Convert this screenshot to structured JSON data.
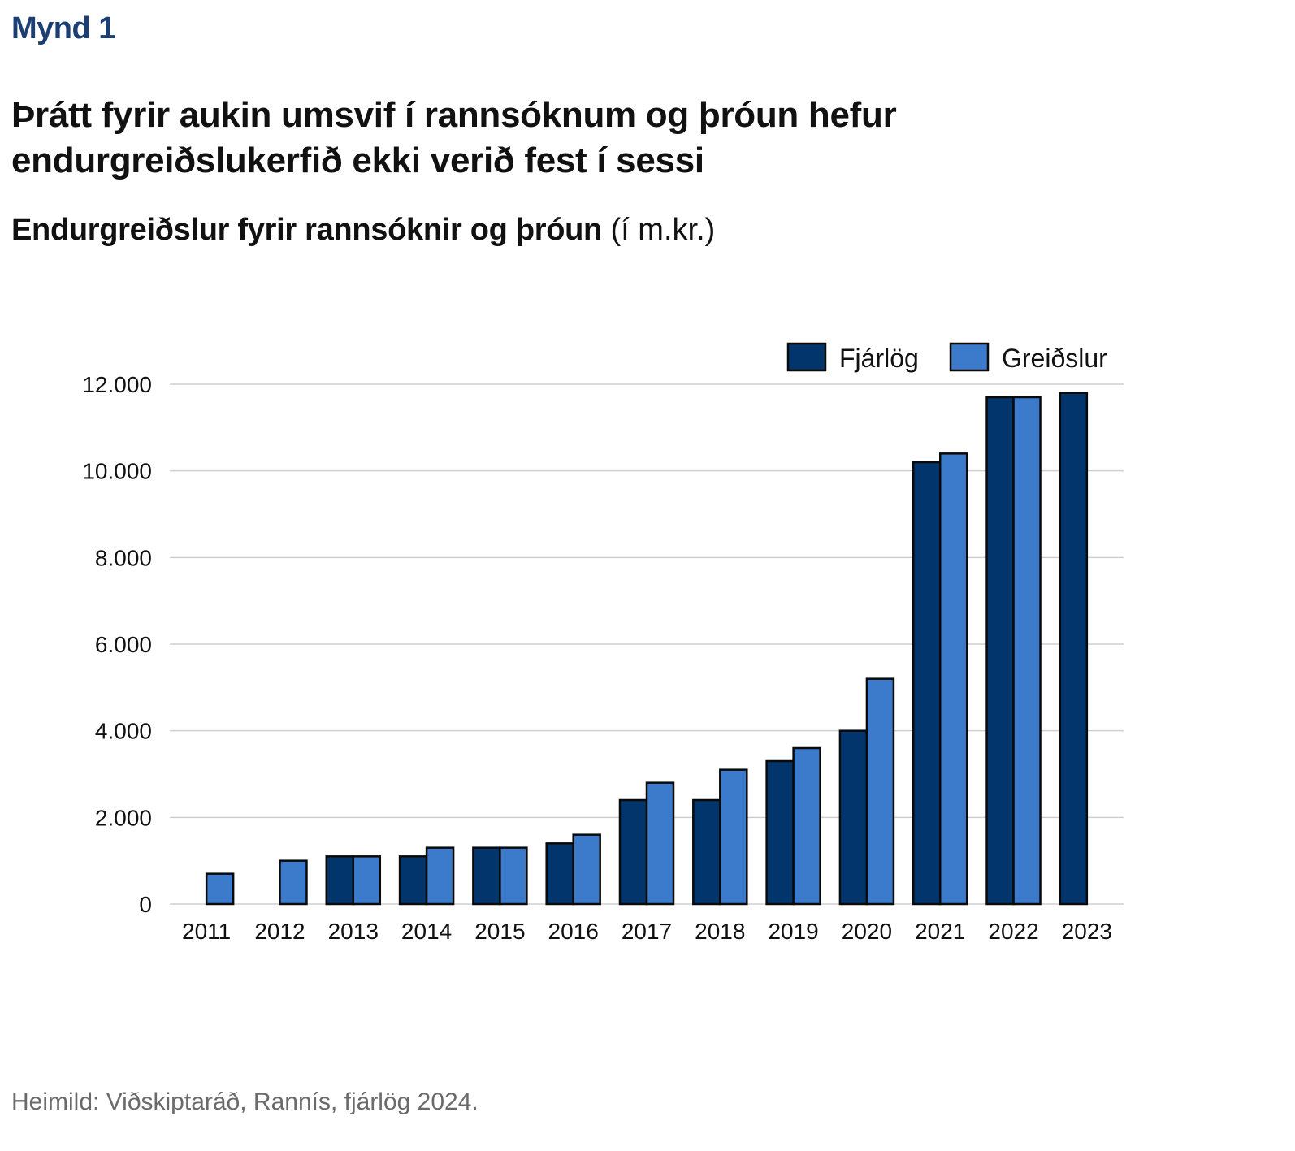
{
  "figure_label": "Mynd 1",
  "headline": "Þrátt fyrir aukin umsvif í rannsóknum og þróun hefur endurgreiðslukerfið ekki verið fest í sessi",
  "subtitle": {
    "main": "Endurgreiðslur fyrir rannsóknir og þróun",
    "unit": "(í m.kr.)"
  },
  "source": "Heimild: Viðskiptaráð, Rannís, fjárlög 2024.",
  "chart_data": {
    "type": "bar",
    "categories": [
      "2011",
      "2012",
      "2013",
      "2014",
      "2015",
      "2016",
      "2017",
      "2018",
      "2019",
      "2020",
      "2021",
      "2022",
      "2023"
    ],
    "series": [
      {
        "name": "Fjárlög",
        "color": "#02356b",
        "values": [
          null,
          null,
          1100,
          1100,
          1300,
          1400,
          2400,
          2400,
          3300,
          4000,
          10200,
          11700,
          11800
        ]
      },
      {
        "name": "Greiðslur",
        "color": "#3c7acb",
        "values": [
          700,
          1000,
          1100,
          1300,
          1300,
          1600,
          2800,
          3100,
          3600,
          5200,
          10400,
          11700,
          null
        ]
      }
    ],
    "yticks": [
      0,
      2000,
      4000,
      6000,
      8000,
      10000,
      12000
    ],
    "ytick_labels": [
      "0",
      "2.000",
      "4.000",
      "6.000",
      "8.000",
      "10.000",
      "12.000"
    ],
    "ylim": [
      0,
      12000
    ],
    "grid": true,
    "legend_position": "top-right"
  }
}
